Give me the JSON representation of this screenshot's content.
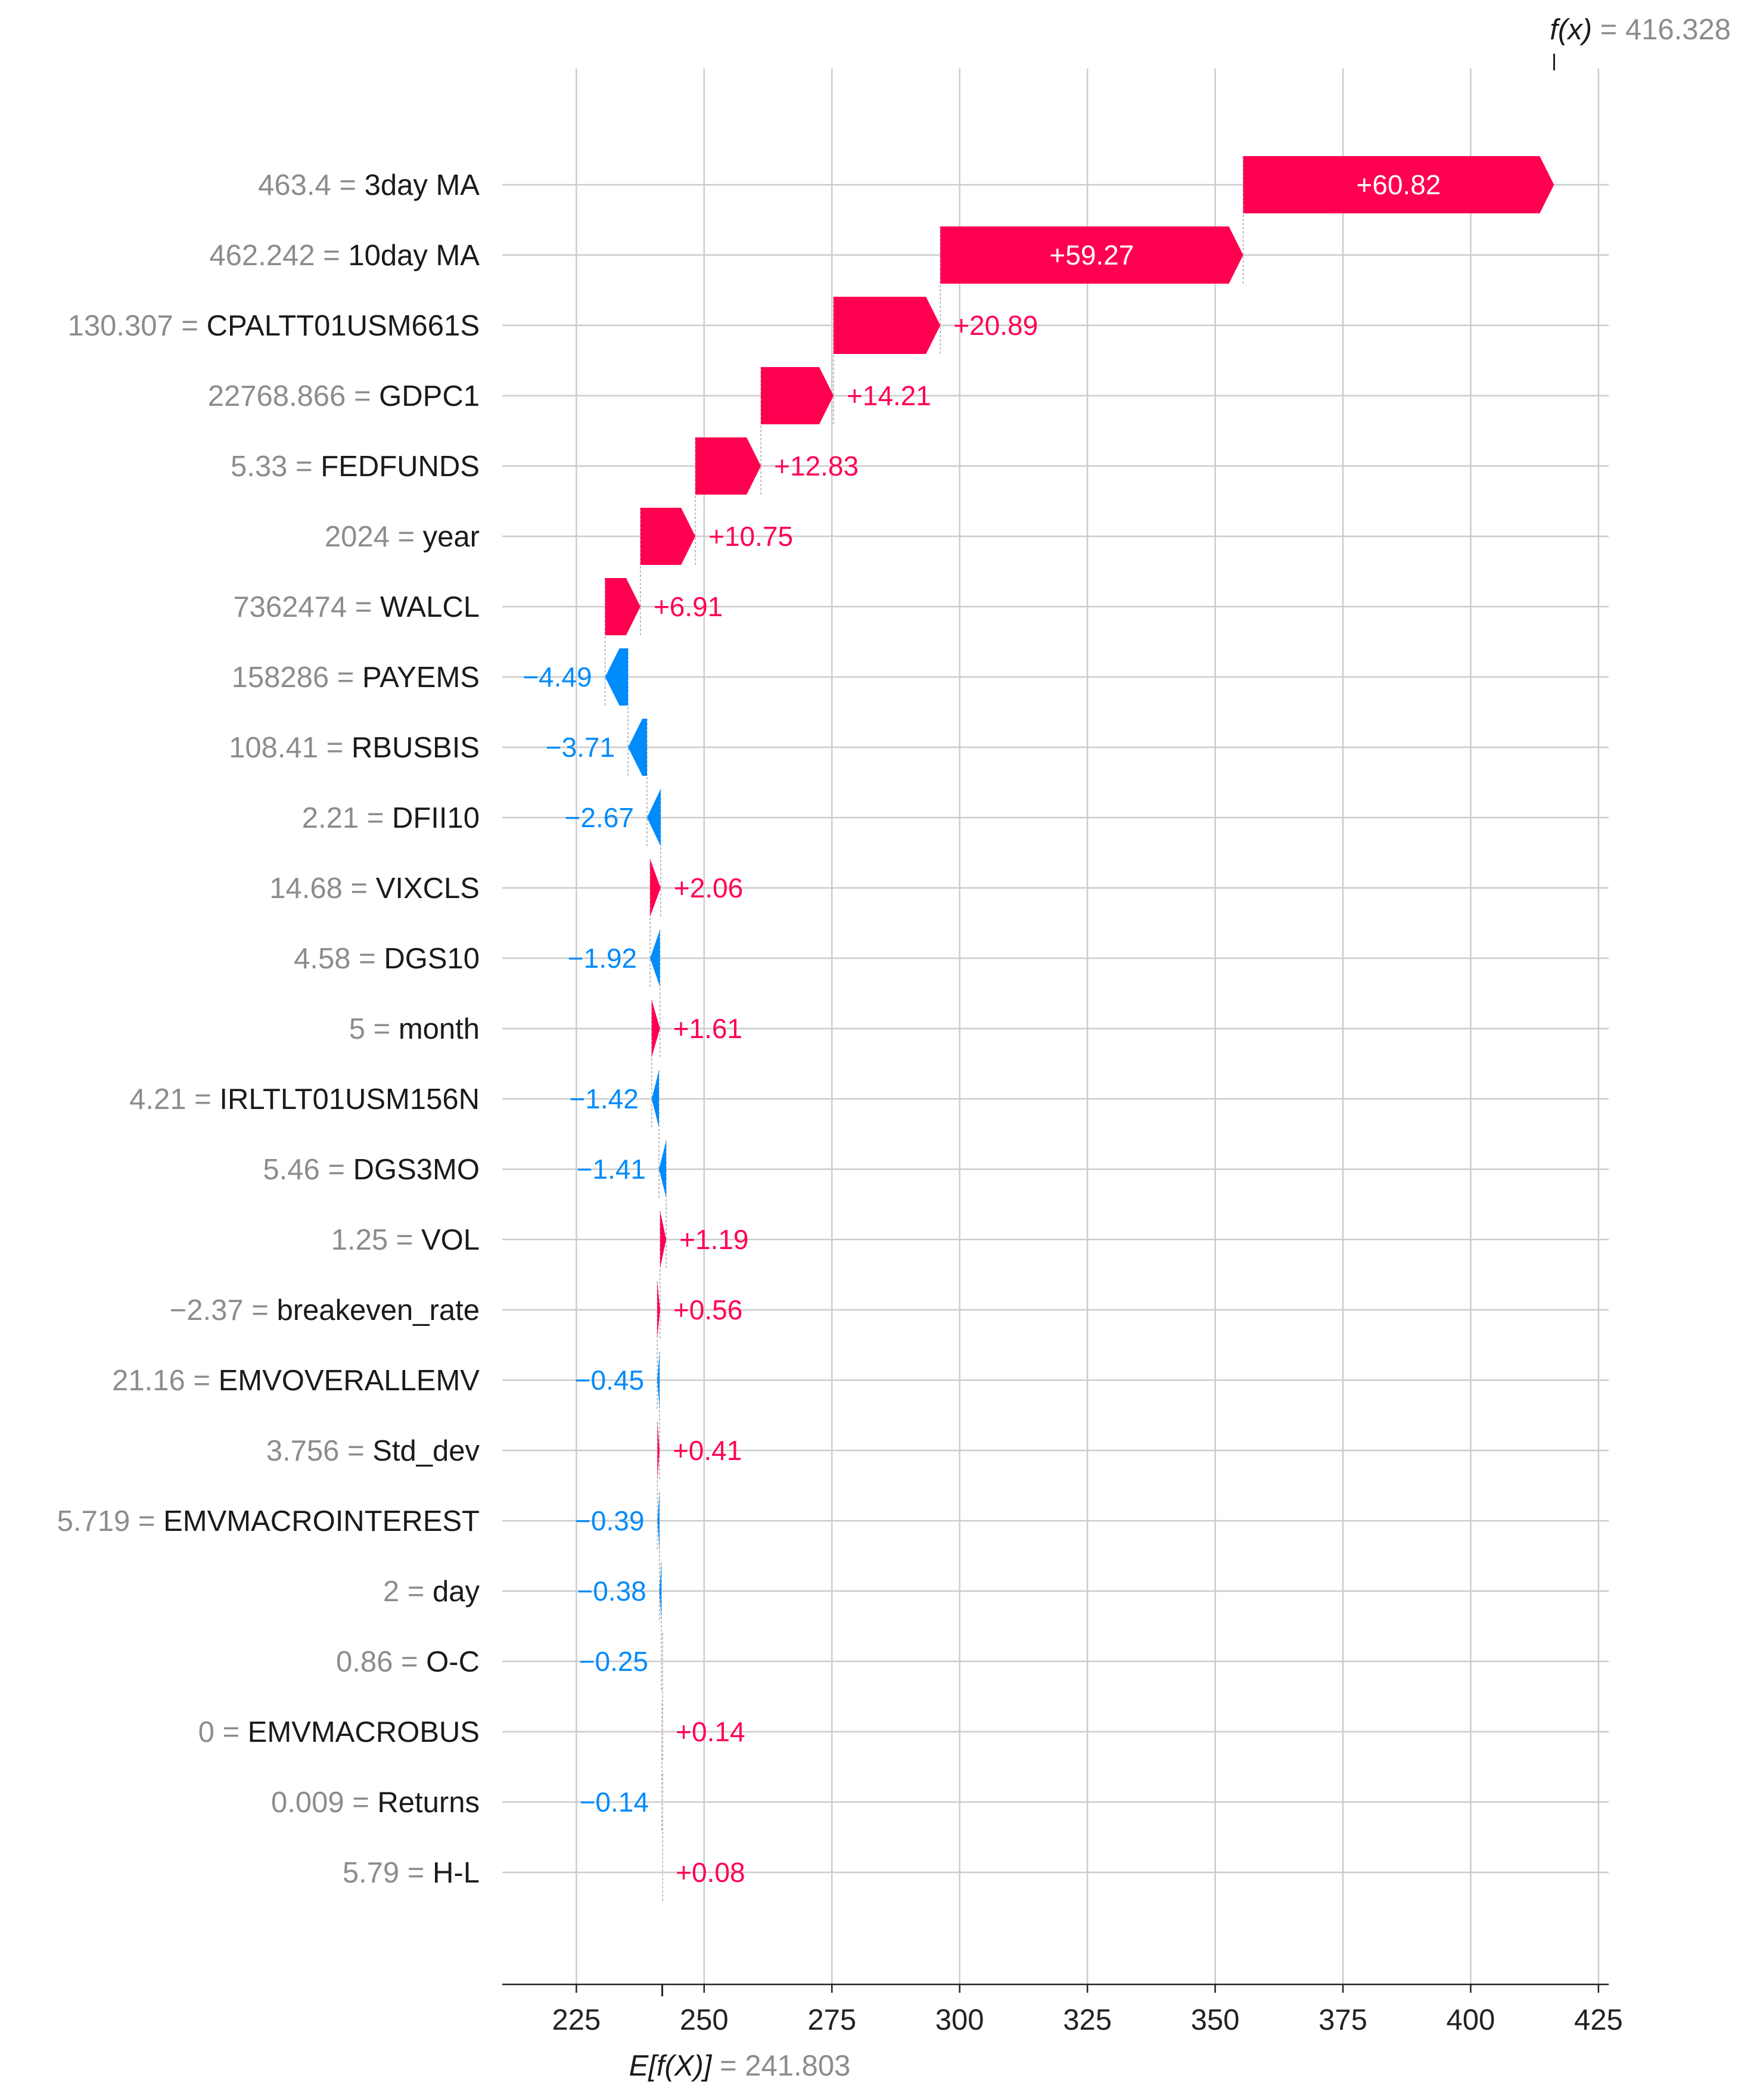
{
  "chart_data": {
    "type": "waterfall",
    "base_value": 241.803,
    "base_label": "E[f(X)]",
    "base_value_text": "241.803",
    "output_value": 416.328,
    "output_label": "f(x)",
    "output_value_text": "416.328",
    "xlim": [
      210.5,
      427
    ],
    "x_ticks": [
      225,
      250,
      275,
      300,
      325,
      350,
      375,
      400,
      425
    ],
    "colors": {
      "positive": "#ff0051",
      "negative": "#008bfb",
      "positive_light": "#ffc3d5",
      "negative_light": "#d1e6fa"
    },
    "features": [
      {
        "value": "463.4",
        "name": "3day MA",
        "contribution": 60.82,
        "label": "+60.82"
      },
      {
        "value": "462.242",
        "name": "10day MA",
        "contribution": 59.27,
        "label": "+59.27"
      },
      {
        "value": "130.307",
        "name": "CPALTT01USM661S",
        "contribution": 20.89,
        "label": "+20.89"
      },
      {
        "value": "22768.866",
        "name": "GDPC1",
        "contribution": 14.21,
        "label": "+14.21"
      },
      {
        "value": "5.33",
        "name": "FEDFUNDS",
        "contribution": 12.83,
        "label": "+12.83"
      },
      {
        "value": "2024",
        "name": "year",
        "contribution": 10.75,
        "label": "+10.75"
      },
      {
        "value": "7362474",
        "name": "WALCL",
        "contribution": 6.91,
        "label": "+6.91"
      },
      {
        "value": "158286",
        "name": "PAYEMS",
        "contribution": -4.49,
        "label": "−4.49"
      },
      {
        "value": "108.41",
        "name": "RBUSBIS",
        "contribution": -3.71,
        "label": "−3.71"
      },
      {
        "value": "2.21",
        "name": "DFII10",
        "contribution": -2.67,
        "label": "−2.67"
      },
      {
        "value": "14.68",
        "name": "VIXCLS",
        "contribution": 2.06,
        "label": "+2.06"
      },
      {
        "value": "4.58",
        "name": "DGS10",
        "contribution": -1.92,
        "label": "−1.92"
      },
      {
        "value": "5",
        "name": "month",
        "contribution": 1.61,
        "label": "+1.61"
      },
      {
        "value": "4.21",
        "name": "IRLTLT01USM156N",
        "contribution": -1.42,
        "label": "−1.42"
      },
      {
        "value": "5.46",
        "name": "DGS3MO",
        "contribution": -1.41,
        "label": "−1.41"
      },
      {
        "value": "1.25",
        "name": "VOL",
        "contribution": 1.19,
        "label": "+1.19"
      },
      {
        "value": "−2.37",
        "name": "breakeven_rate",
        "contribution": 0.56,
        "label": "+0.56"
      },
      {
        "value": "21.16",
        "name": "EMVOVERALLEMV",
        "contribution": -0.45,
        "label": "−0.45"
      },
      {
        "value": "3.756",
        "name": "Std_dev",
        "contribution": 0.41,
        "label": "+0.41"
      },
      {
        "value": "5.719",
        "name": "EMVMACROINTEREST",
        "contribution": -0.39,
        "label": "−0.39"
      },
      {
        "value": "2",
        "name": "day",
        "contribution": -0.38,
        "label": "−0.38"
      },
      {
        "value": "0.86",
        "name": "O-C",
        "contribution": -0.25,
        "label": "−0.25"
      },
      {
        "value": "0",
        "name": "EMVMACROBUS",
        "contribution": 0.14,
        "label": "+0.14"
      },
      {
        "value": "0.009",
        "name": "Returns",
        "contribution": -0.14,
        "label": "−0.14"
      },
      {
        "value": "5.79",
        "name": "H-L",
        "contribution": 0.08,
        "label": "+0.08"
      }
    ]
  }
}
